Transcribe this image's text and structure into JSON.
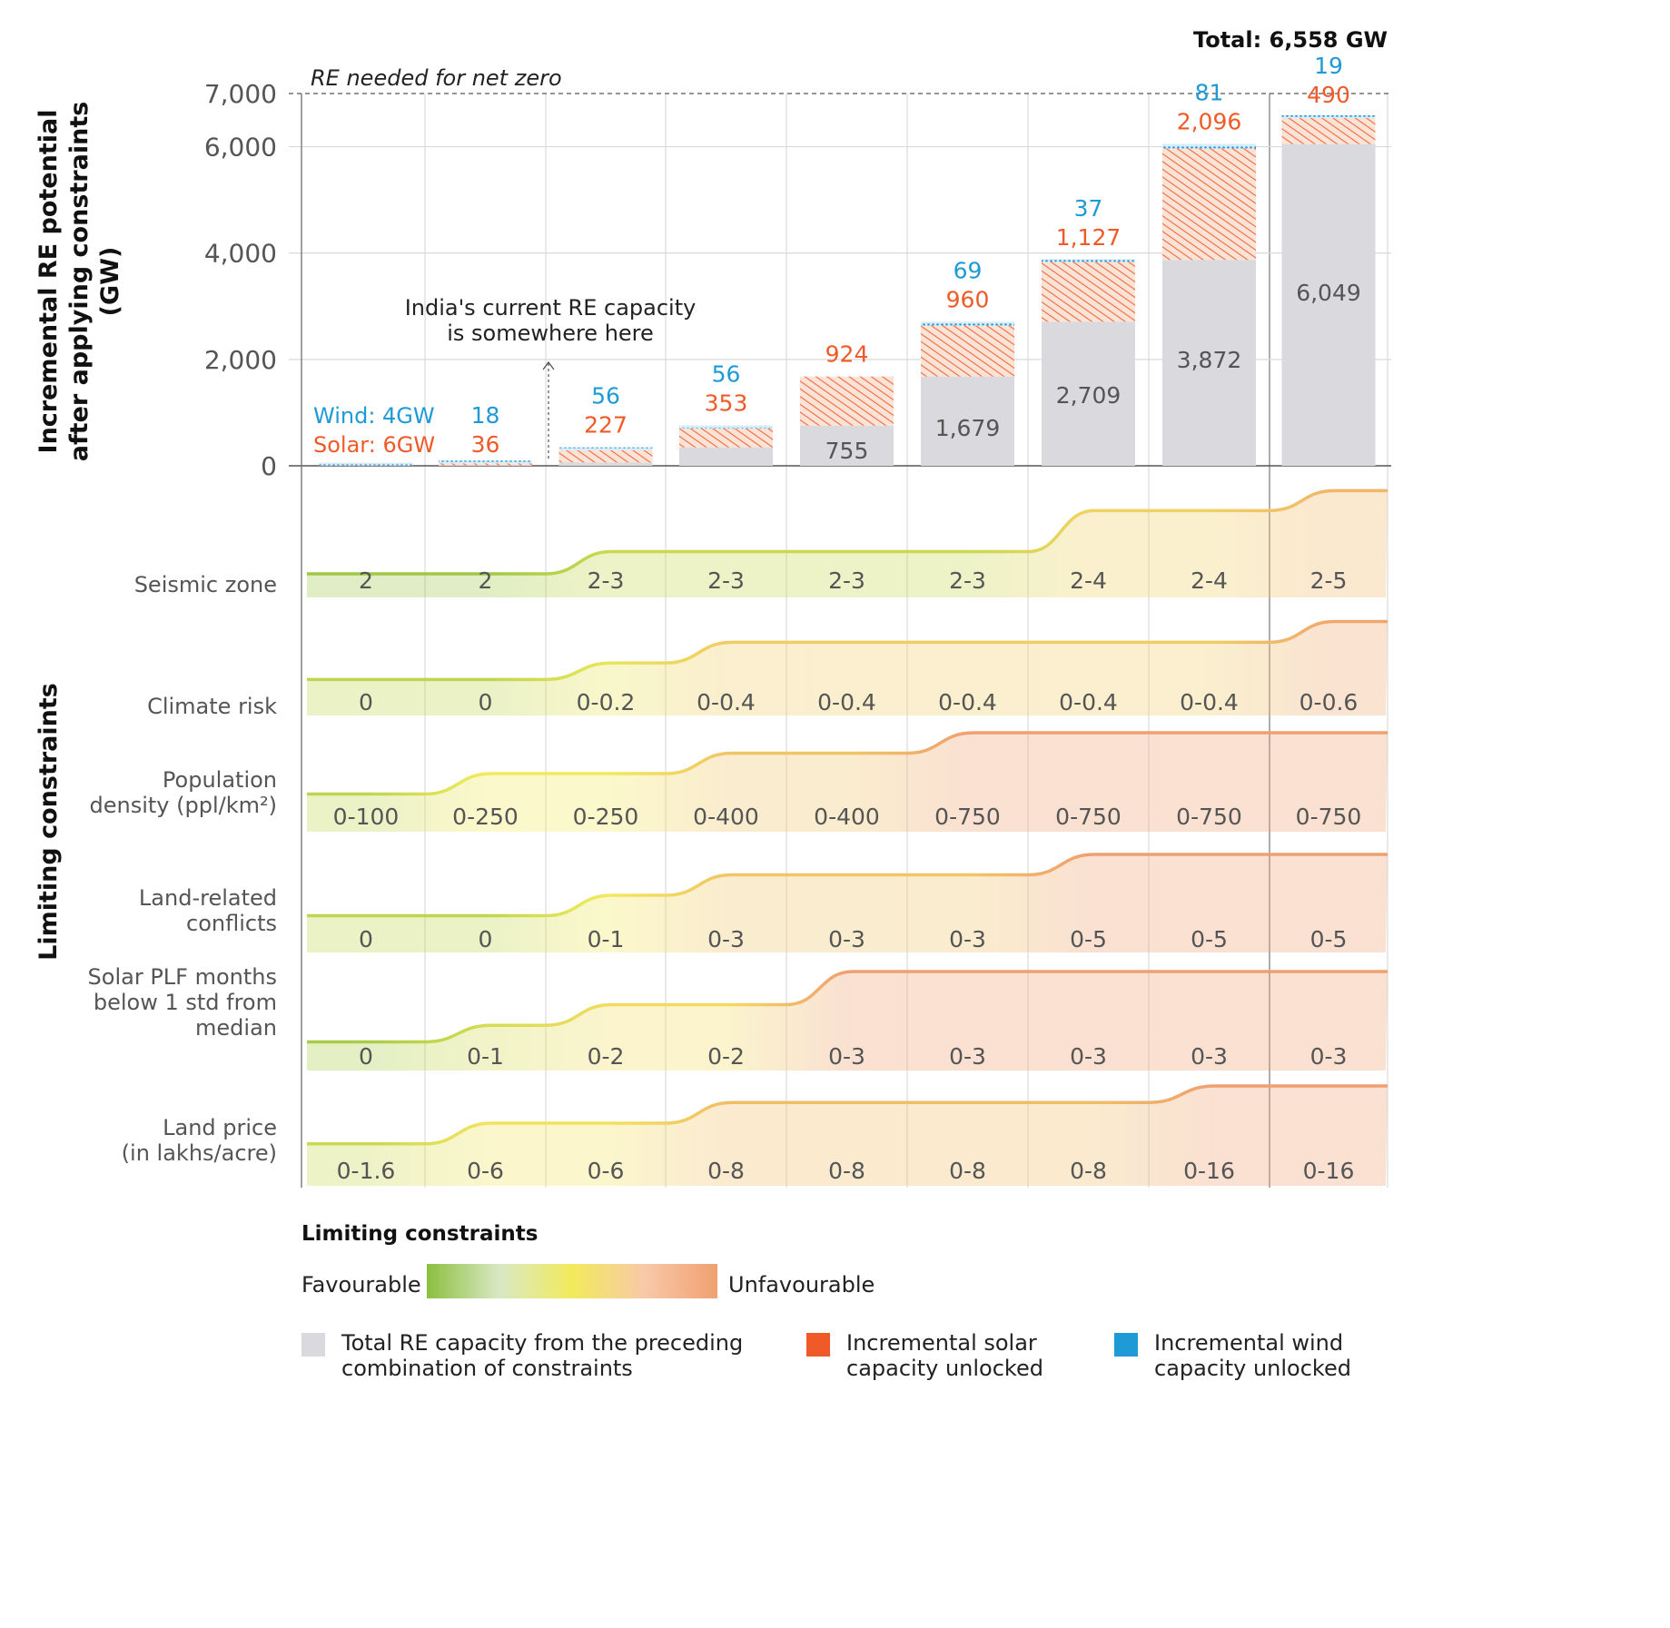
{
  "chart_data": {
    "type": "bar",
    "title": "",
    "total_label": "Total: 6,558 GW",
    "ylabel_lines": [
      "Incremental RE potential",
      "after applying constraints",
      "(GW)"
    ],
    "ylim": [
      0,
      7000
    ],
    "yticks": [
      {
        "value": 0,
        "label": "0"
      },
      {
        "value": 2000,
        "label": "2,000"
      },
      {
        "value": 4000,
        "label": "4,000"
      },
      {
        "value": 6000,
        "label": "6,000"
      },
      {
        "value": 7000,
        "label": "7,000"
      }
    ],
    "reference_line": {
      "value": 7000,
      "label": "RE needed for net zero",
      "style": "dashed"
    },
    "annotation": {
      "lines": [
        "India's current RE capacity",
        "is somewhere here"
      ],
      "column": 2
    },
    "series": [
      {
        "name": "Total RE capacity from the preceding combination of constraints",
        "color": "#d9d9de"
      },
      {
        "name": "Incremental solar capacity unlocked",
        "color": "#f05a28"
      },
      {
        "name": "Incremental wind capacity unlocked",
        "color": "#1e9ad6"
      }
    ],
    "columns": [
      {
        "base": 0,
        "base_label": "",
        "solar": 6,
        "solar_label": "Solar: 6GW",
        "wind": 4,
        "wind_label": "Wind: 4GW"
      },
      {
        "base": 10,
        "base_label": "",
        "solar": 36,
        "solar_label": "36",
        "wind": 18,
        "wind_label": "18"
      },
      {
        "base": 64,
        "base_label": "",
        "solar": 227,
        "solar_label": "227",
        "wind": 56,
        "wind_label": "56"
      },
      {
        "base": 347,
        "base_label": "",
        "solar": 353,
        "solar_label": "353",
        "wind": 56,
        "wind_label": "56"
      },
      {
        "base": 755,
        "base_label": "755",
        "solar": 924,
        "solar_label": "924",
        "wind": 0,
        "wind_label": ""
      },
      {
        "base": 1679,
        "base_label": "1,679",
        "solar": 960,
        "solar_label": "960",
        "wind": 69,
        "wind_label": "69"
      },
      {
        "base": 2709,
        "base_label": "2,709",
        "solar": 1127,
        "solar_label": "1,127",
        "wind": 37,
        "wind_label": "37"
      },
      {
        "base": 3872,
        "base_label": "3,872",
        "solar": 2096,
        "solar_label": "2,096",
        "wind": 81,
        "wind_label": "81"
      },
      {
        "base": 6049,
        "base_label": "6,049",
        "solar": 490,
        "solar_label": "490",
        "wind": 19,
        "wind_label": "19"
      }
    ],
    "constraints_axis_label": "Limiting constraints",
    "constraints": [
      {
        "label_lines": [
          "Seismic zone"
        ],
        "values": [
          "2",
          "2",
          "2-3",
          "2-3",
          "2-3",
          "2-3",
          "2-4",
          "2-4",
          "2-5"
        ],
        "levels": [
          0.1,
          0.1,
          0.3,
          0.3,
          0.3,
          0.3,
          0.67,
          0.67,
          0.85
        ]
      },
      {
        "label_lines": [
          "Climate risk"
        ],
        "values": [
          "0",
          "0",
          "0-0.2",
          "0-0.4",
          "0-0.4",
          "0-0.4",
          "0-0.4",
          "0-0.4",
          "0-0.6"
        ],
        "levels": [
          0.25,
          0.25,
          0.45,
          0.7,
          0.7,
          0.7,
          0.7,
          0.7,
          0.95
        ]
      },
      {
        "label_lines": [
          "Population",
          "density (ppl/km²)"
        ],
        "values": [
          "0-100",
          "0-250",
          "0-250",
          "0-400",
          "0-400",
          "0-750",
          "0-750",
          "0-750",
          "0-750"
        ],
        "levels": [
          0.25,
          0.5,
          0.5,
          0.75,
          0.75,
          1.0,
          1.0,
          1.0,
          1.0
        ]
      },
      {
        "label_lines": [
          "Land-related",
          "conflicts"
        ],
        "values": [
          "0",
          "0",
          "0-1",
          "0-3",
          "0-3",
          "0-3",
          "0-5",
          "0-5",
          "0-5"
        ],
        "levels": [
          0.25,
          0.25,
          0.5,
          0.75,
          0.75,
          0.75,
          1.0,
          1.0,
          1.0
        ]
      },
      {
        "label_lines": [
          "Solar PLF months",
          "below 1 std from",
          "median"
        ],
        "values": [
          "0",
          "0-1",
          "0-2",
          "0-2",
          "0-3",
          "0-3",
          "0-3",
          "0-3",
          "0-3"
        ],
        "levels": [
          0.15,
          0.35,
          0.6,
          0.6,
          1.0,
          1.0,
          1.0,
          1.0,
          1.0
        ]
      },
      {
        "label_lines": [
          "Land price",
          "(in lakhs/acre)"
        ],
        "values": [
          "0-1.6",
          "0-6",
          "0-6",
          "0-8",
          "0-8",
          "0-8",
          "0-8",
          "0-16",
          "0-16"
        ],
        "levels": [
          0.3,
          0.55,
          0.55,
          0.8,
          0.8,
          0.8,
          0.8,
          1.0,
          1.0
        ]
      }
    ],
    "gradient_colors": [
      "#8cbf3f",
      "#f2ea5c",
      "#f0a070"
    ],
    "legend": {
      "scale_title": "Limiting constraints",
      "favourable": "Favourable",
      "unfavourable": "Unfavourable",
      "items": [
        {
          "lines": [
            "Total RE capacity from the preceding",
            "combination of constraints"
          ],
          "color": "#d9d9de"
        },
        {
          "lines": [
            "Incremental solar",
            "capacity unlocked"
          ],
          "color": "#f05a28"
        },
        {
          "lines": [
            "Incremental wind",
            "capacity unlocked"
          ],
          "color": "#1e9ad6"
        }
      ]
    }
  }
}
